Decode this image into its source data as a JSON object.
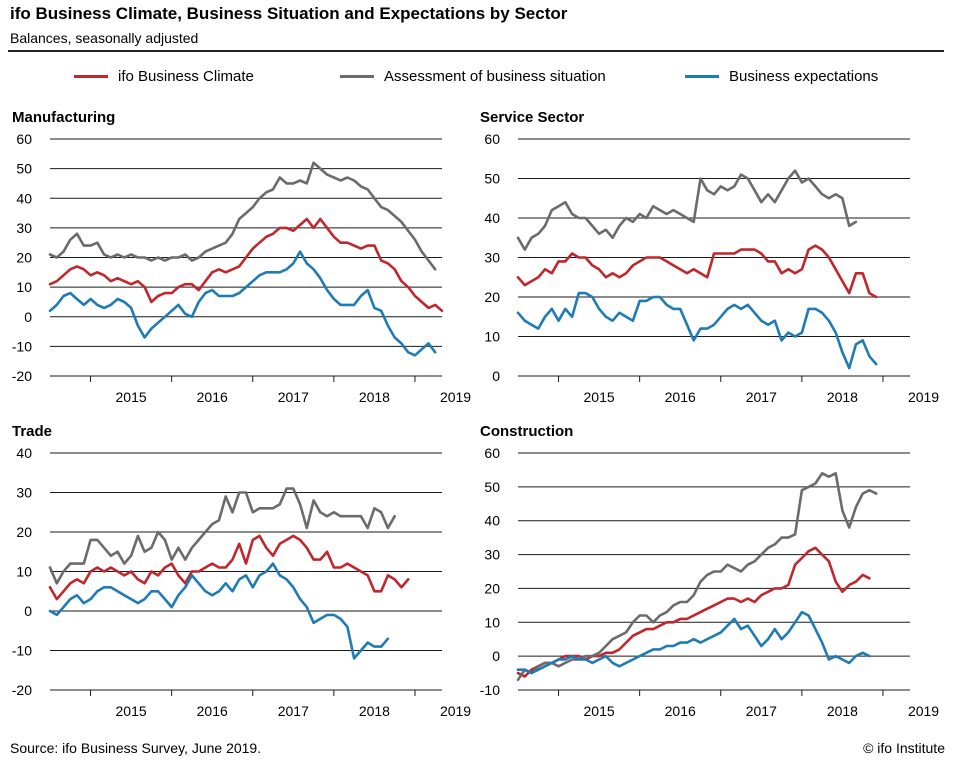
{
  "header": {
    "title": "ifo Business Climate, Business Situation and Expectations by Sector",
    "subtitle": "Balances, seasonally adjusted"
  },
  "legend": [
    {
      "label": "ifo Business Climate",
      "color": "#c0272d"
    },
    {
      "label": "Assessment of business situation",
      "color": "#6b6b6b"
    },
    {
      "label": "Business expectations",
      "color": "#1f7bb6"
    }
  ],
  "footer": {
    "source": "Source: ifo Business Survey, June 2019.",
    "copyright": "© ifo Institute"
  },
  "chart_data": [
    {
      "type": "line",
      "title": "Manufacturing",
      "x_start": "2014-07",
      "x_labels": [
        "2015",
        "2016",
        "2017",
        "2018",
        "2019"
      ],
      "ylim": [
        -20,
        60
      ],
      "yticks": [
        -20,
        -10,
        0,
        10,
        20,
        30,
        40,
        50,
        60
      ],
      "grid": true,
      "series": [
        {
          "name": "ifo Business Climate",
          "color": "#c0272d",
          "values": [
            11,
            12,
            14,
            16,
            17,
            16,
            14,
            15,
            14,
            12,
            13,
            12,
            11,
            12,
            10,
            5,
            7,
            8,
            8,
            10,
            11,
            11,
            9,
            12,
            15,
            16,
            15,
            16,
            17,
            20,
            23,
            25,
            27,
            28,
            30,
            30,
            29,
            31,
            33,
            30,
            33,
            30,
            27,
            25,
            25,
            24,
            23,
            24,
            24,
            19,
            18,
            16,
            12,
            10,
            7,
            5,
            3,
            4,
            2
          ]
        },
        {
          "name": "Assessment of business situation",
          "color": "#6b6b6b",
          "values": [
            21,
            20,
            22,
            26,
            28,
            24,
            24,
            25,
            21,
            20,
            21,
            20,
            21,
            20,
            20,
            19,
            20,
            19,
            20,
            20,
            21,
            19,
            20,
            22,
            23,
            24,
            25,
            28,
            33,
            35,
            37,
            40,
            42,
            43,
            47,
            45,
            45,
            46,
            45,
            52,
            50,
            48,
            47,
            46,
            47,
            46,
            44,
            43,
            40,
            37,
            36,
            34,
            32,
            29,
            26,
            22,
            19,
            16
          ]
        },
        {
          "name": "Business expectations",
          "color": "#1f7bb6",
          "values": [
            2,
            4,
            7,
            8,
            6,
            4,
            6,
            4,
            3,
            4,
            6,
            5,
            3,
            -3,
            -7,
            -4,
            -2,
            0,
            2,
            4,
            1,
            0,
            5,
            8,
            9,
            7,
            7,
            7,
            8,
            10,
            12,
            14,
            15,
            15,
            15,
            16,
            18,
            22,
            18,
            16,
            13,
            9,
            6,
            4,
            4,
            4,
            7,
            9,
            3,
            2,
            -3,
            -7,
            -9,
            -12,
            -13,
            -11,
            -9,
            -12
          ]
        }
      ]
    },
    {
      "type": "line",
      "title": "Service Sector",
      "x_start": "2014-07",
      "x_labels": [
        "2015",
        "2016",
        "2017",
        "2018",
        "2019"
      ],
      "ylim": [
        0,
        60
      ],
      "yticks": [
        0,
        10,
        20,
        30,
        40,
        50,
        60
      ],
      "grid": true,
      "series": [
        {
          "name": "ifo Business Climate",
          "color": "#c0272d",
          "values": [
            25,
            23,
            24,
            25,
            27,
            26,
            29,
            29,
            31,
            30,
            30,
            28,
            27,
            25,
            26,
            25,
            26,
            28,
            29,
            30,
            30,
            30,
            29,
            28,
            27,
            26,
            27,
            26,
            25,
            31,
            31,
            31,
            31,
            32,
            32,
            32,
            31,
            29,
            29,
            26,
            27,
            26,
            27,
            32,
            33,
            32,
            30,
            27,
            24,
            21,
            26,
            26,
            21,
            20
          ]
        },
        {
          "name": "Assessment of business situation",
          "color": "#6b6b6b",
          "values": [
            35,
            32,
            35,
            36,
            38,
            42,
            43,
            44,
            41,
            40,
            40,
            38,
            36,
            37,
            35,
            38,
            40,
            39,
            41,
            40,
            43,
            42,
            41,
            42,
            41,
            40,
            39,
            50,
            47,
            46,
            48,
            47,
            48,
            51,
            50,
            47,
            44,
            46,
            44,
            47,
            50,
            52,
            49,
            50,
            48,
            46,
            45,
            46,
            45,
            38,
            39
          ]
        },
        {
          "name": "Business expectations",
          "color": "#1f7bb6",
          "values": [
            16,
            14,
            13,
            12,
            15,
            17,
            14,
            17,
            15,
            21,
            21,
            20,
            17,
            15,
            14,
            16,
            15,
            14,
            19,
            19,
            20,
            20,
            18,
            17,
            17,
            13,
            9,
            12,
            12,
            13,
            15,
            17,
            18,
            17,
            18,
            16,
            14,
            13,
            14,
            9,
            11,
            10,
            11,
            17,
            17,
            16,
            14,
            11,
            6,
            2,
            8,
            9,
            5,
            3
          ]
        }
      ]
    },
    {
      "type": "line",
      "title": "Trade",
      "x_start": "2014-07",
      "x_labels": [
        "2015",
        "2016",
        "2017",
        "2018",
        "2019"
      ],
      "ylim": [
        -20,
        40
      ],
      "yticks": [
        -20,
        -10,
        0,
        10,
        20,
        30,
        40
      ],
      "grid": true,
      "series": [
        {
          "name": "ifo Business Climate",
          "color": "#c0272d",
          "values": [
            6,
            3,
            5,
            7,
            8,
            7,
            10,
            11,
            10,
            11,
            10,
            9,
            10,
            8,
            7,
            10,
            9,
            11,
            12,
            9,
            7,
            10,
            10,
            11,
            12,
            11,
            11,
            13,
            17,
            12,
            18,
            19,
            16,
            14,
            17,
            18,
            19,
            18,
            16,
            13,
            13,
            15,
            11,
            11,
            12,
            11,
            10,
            9,
            5,
            5,
            9,
            8,
            6,
            8
          ]
        },
        {
          "name": "Assessment of business situation",
          "color": "#6b6b6b",
          "values": [
            11,
            7,
            10,
            12,
            12,
            12,
            18,
            18,
            16,
            14,
            15,
            12,
            14,
            19,
            15,
            16,
            20,
            18,
            13,
            16,
            13,
            16,
            18,
            20,
            22,
            23,
            29,
            25,
            30,
            30,
            25,
            26,
            26,
            26,
            27,
            31,
            31,
            27,
            21,
            28,
            25,
            24,
            25,
            24,
            24,
            24,
            24,
            21,
            26,
            25,
            21,
            24
          ]
        },
        {
          "name": "Business expectations",
          "color": "#1f7bb6",
          "values": [
            0,
            -1,
            1,
            3,
            4,
            2,
            3,
            5,
            6,
            6,
            5,
            4,
            3,
            2,
            3,
            5,
            5,
            3,
            1,
            4,
            6,
            9,
            7,
            5,
            4,
            5,
            7,
            5,
            8,
            9,
            6,
            9,
            10,
            12,
            9,
            8,
            6,
            3,
            1,
            -3,
            -2,
            -1,
            -1,
            -2,
            -4,
            -12,
            -10,
            -8,
            -9,
            -9,
            -7
          ]
        }
      ]
    },
    {
      "type": "line",
      "title": "Construction",
      "x_start": "2014-07",
      "x_labels": [
        "2015",
        "2016",
        "2017",
        "2018",
        "2019"
      ],
      "ylim": [
        -10,
        60
      ],
      "yticks": [
        -10,
        0,
        10,
        20,
        30,
        40,
        50,
        60
      ],
      "grid": true,
      "series": [
        {
          "name": "ifo Business Climate",
          "color": "#c0272d",
          "values": [
            -5,
            -6,
            -4,
            -3,
            -2,
            -2,
            -1,
            0,
            0,
            0,
            -1,
            0,
            0,
            1,
            1,
            2,
            4,
            6,
            7,
            8,
            8,
            9,
            10,
            10,
            11,
            11,
            12,
            13,
            14,
            15,
            16,
            17,
            17,
            16,
            17,
            16,
            18,
            19,
            20,
            20,
            21,
            27,
            29,
            31,
            32,
            30,
            28,
            22,
            19,
            21,
            22,
            24,
            23
          ]
        },
        {
          "name": "Assessment of business situation",
          "color": "#6b6b6b",
          "values": [
            -7,
            -4,
            -5,
            -3,
            -2,
            -2,
            -3,
            -2,
            -1,
            -1,
            0,
            0,
            1,
            3,
            5,
            6,
            7,
            10,
            12,
            12,
            10,
            12,
            13,
            15,
            16,
            16,
            18,
            22,
            24,
            25,
            25,
            27,
            26,
            25,
            27,
            28,
            30,
            32,
            33,
            35,
            35,
            36,
            49,
            50,
            51,
            54,
            53,
            54,
            43,
            38,
            44,
            48,
            49,
            48
          ]
        },
        {
          "name": "Business expectations",
          "color": "#1f7bb6",
          "values": [
            -4,
            -4,
            -5,
            -4,
            -3,
            -2,
            -1,
            -1,
            0,
            -1,
            -1,
            -2,
            -1,
            0,
            -2,
            -3,
            -2,
            -1,
            0,
            1,
            2,
            2,
            3,
            3,
            4,
            4,
            5,
            4,
            5,
            6,
            7,
            9,
            11,
            8,
            9,
            6,
            3,
            5,
            8,
            5,
            7,
            10,
            13,
            12,
            8,
            4,
            -1,
            0,
            -1,
            -2,
            0,
            1,
            0
          ]
        }
      ]
    }
  ]
}
